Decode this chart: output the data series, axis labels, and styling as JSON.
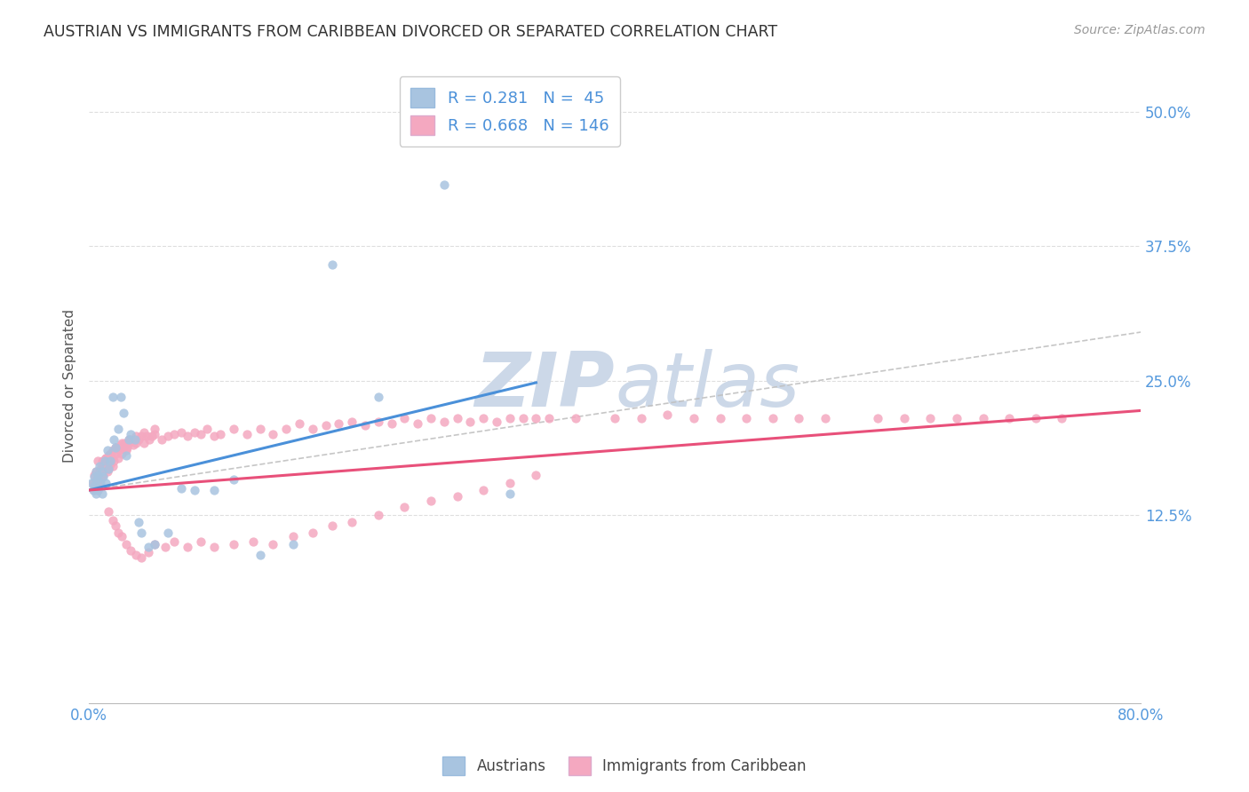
{
  "title": "AUSTRIAN VS IMMIGRANTS FROM CARIBBEAN DIVORCED OR SEPARATED CORRELATION CHART",
  "source_text": "Source: ZipAtlas.com",
  "ylabel": "Divorced or Separated",
  "ytick_labels": [
    "12.5%",
    "25.0%",
    "37.5%",
    "50.0%"
  ],
  "ytick_values": [
    0.125,
    0.25,
    0.375,
    0.5
  ],
  "xlim": [
    0.0,
    0.8
  ],
  "ylim": [
    -0.05,
    0.54
  ],
  "legend_r_blue": "0.281",
  "legend_n_blue": "45",
  "legend_r_pink": "0.668",
  "legend_n_pink": "146",
  "blue_scatter_color": "#a8c4e0",
  "pink_scatter_color": "#f4a8c0",
  "blue_line_color": "#4a90d9",
  "pink_line_color": "#e8507a",
  "dashed_line_color": "#c0c0c0",
  "watermark_color": "#ccd8e8",
  "background_color": "#ffffff",
  "grid_color": "#dedede",
  "title_color": "#333333",
  "source_color": "#999999",
  "axis_tick_color": "#5599dd",
  "ylabel_color": "#555555",
  "blue_line_x0": 0.0,
  "blue_line_x1": 0.34,
  "blue_line_y0": 0.148,
  "blue_line_y1": 0.248,
  "pink_line_x0": 0.0,
  "pink_line_x1": 0.8,
  "pink_line_y0": 0.148,
  "pink_line_y1": 0.222,
  "dash_line_x0": 0.0,
  "dash_line_x1": 0.8,
  "dash_line_y0": 0.148,
  "dash_line_y1": 0.295,
  "austrians_x": [
    0.002,
    0.003,
    0.004,
    0.004,
    0.005,
    0.005,
    0.006,
    0.006,
    0.007,
    0.007,
    0.008,
    0.009,
    0.01,
    0.01,
    0.011,
    0.012,
    0.013,
    0.014,
    0.015,
    0.016,
    0.018,
    0.019,
    0.02,
    0.022,
    0.024,
    0.026,
    0.028,
    0.03,
    0.032,
    0.035,
    0.038,
    0.04,
    0.045,
    0.05,
    0.06,
    0.07,
    0.08,
    0.095,
    0.11,
    0.13,
    0.155,
    0.185,
    0.22,
    0.27,
    0.32
  ],
  "austrians_y": [
    0.155,
    0.148,
    0.152,
    0.16,
    0.145,
    0.165,
    0.15,
    0.158,
    0.148,
    0.162,
    0.17,
    0.155,
    0.145,
    0.165,
    0.16,
    0.175,
    0.155,
    0.185,
    0.168,
    0.175,
    0.235,
    0.195,
    0.188,
    0.205,
    0.235,
    0.22,
    0.18,
    0.195,
    0.2,
    0.195,
    0.118,
    0.108,
    0.095,
    0.098,
    0.108,
    0.15,
    0.148,
    0.148,
    0.158,
    0.088,
    0.098,
    0.358,
    0.235,
    0.432,
    0.145
  ],
  "caribbean_x": [
    0.003,
    0.004,
    0.004,
    0.005,
    0.005,
    0.006,
    0.006,
    0.007,
    0.007,
    0.008,
    0.008,
    0.009,
    0.009,
    0.01,
    0.01,
    0.011,
    0.011,
    0.012,
    0.012,
    0.013,
    0.013,
    0.014,
    0.014,
    0.015,
    0.015,
    0.016,
    0.016,
    0.017,
    0.017,
    0.018,
    0.018,
    0.019,
    0.02,
    0.021,
    0.022,
    0.023,
    0.024,
    0.025,
    0.026,
    0.027,
    0.028,
    0.029,
    0.03,
    0.032,
    0.034,
    0.036,
    0.038,
    0.04,
    0.042,
    0.044,
    0.046,
    0.048,
    0.05,
    0.055,
    0.06,
    0.065,
    0.07,
    0.075,
    0.08,
    0.085,
    0.09,
    0.095,
    0.1,
    0.11,
    0.12,
    0.13,
    0.14,
    0.15,
    0.16,
    0.17,
    0.18,
    0.19,
    0.2,
    0.21,
    0.22,
    0.23,
    0.24,
    0.25,
    0.26,
    0.27,
    0.28,
    0.29,
    0.3,
    0.31,
    0.32,
    0.33,
    0.34,
    0.35,
    0.37,
    0.4,
    0.42,
    0.44,
    0.46,
    0.48,
    0.5,
    0.52,
    0.54,
    0.56,
    0.6,
    0.62,
    0.64,
    0.66,
    0.68,
    0.7,
    0.72,
    0.74,
    0.015,
    0.018,
    0.02,
    0.022,
    0.025,
    0.028,
    0.032,
    0.036,
    0.04,
    0.045,
    0.05,
    0.058,
    0.065,
    0.075,
    0.085,
    0.095,
    0.11,
    0.125,
    0.14,
    0.155,
    0.17,
    0.185,
    0.2,
    0.22,
    0.24,
    0.26,
    0.28,
    0.3,
    0.32,
    0.34,
    0.007,
    0.01,
    0.013,
    0.016,
    0.02,
    0.025,
    0.03,
    0.036,
    0.042,
    0.05
  ],
  "caribbean_y": [
    0.155,
    0.148,
    0.162,
    0.15,
    0.165,
    0.155,
    0.158,
    0.16,
    0.148,
    0.165,
    0.155,
    0.168,
    0.158,
    0.162,
    0.175,
    0.162,
    0.17,
    0.168,
    0.175,
    0.172,
    0.178,
    0.165,
    0.175,
    0.168,
    0.18,
    0.172,
    0.175,
    0.178,
    0.182,
    0.17,
    0.185,
    0.175,
    0.182,
    0.188,
    0.178,
    0.185,
    0.19,
    0.182,
    0.188,
    0.192,
    0.185,
    0.188,
    0.192,
    0.195,
    0.19,
    0.192,
    0.195,
    0.198,
    0.192,
    0.198,
    0.195,
    0.198,
    0.2,
    0.195,
    0.198,
    0.2,
    0.202,
    0.198,
    0.202,
    0.2,
    0.205,
    0.198,
    0.2,
    0.205,
    0.2,
    0.205,
    0.2,
    0.205,
    0.21,
    0.205,
    0.208,
    0.21,
    0.212,
    0.208,
    0.212,
    0.21,
    0.215,
    0.21,
    0.215,
    0.212,
    0.215,
    0.212,
    0.215,
    0.212,
    0.215,
    0.215,
    0.215,
    0.215,
    0.215,
    0.215,
    0.215,
    0.218,
    0.215,
    0.215,
    0.215,
    0.215,
    0.215,
    0.215,
    0.215,
    0.215,
    0.215,
    0.215,
    0.215,
    0.215,
    0.215,
    0.215,
    0.128,
    0.12,
    0.115,
    0.108,
    0.105,
    0.098,
    0.092,
    0.088,
    0.085,
    0.09,
    0.098,
    0.095,
    0.1,
    0.095,
    0.1,
    0.095,
    0.098,
    0.1,
    0.098,
    0.105,
    0.108,
    0.115,
    0.118,
    0.125,
    0.132,
    0.138,
    0.142,
    0.148,
    0.155,
    0.162,
    0.175,
    0.168,
    0.178,
    0.182,
    0.188,
    0.192,
    0.195,
    0.198,
    0.202,
    0.205
  ]
}
